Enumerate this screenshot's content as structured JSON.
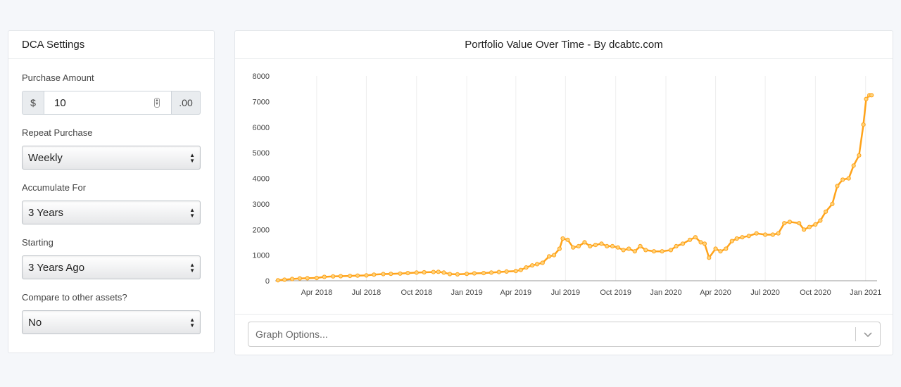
{
  "settings": {
    "title": "DCA Settings",
    "purchase_amount": {
      "label": "Purchase Amount",
      "prefix": "$",
      "value": "10",
      "suffix": ".00"
    },
    "repeat_purchase": {
      "label": "Repeat Purchase",
      "value": "Weekly"
    },
    "accumulate_for": {
      "label": "Accumulate For",
      "value": "3 Years"
    },
    "starting": {
      "label": "Starting",
      "value": "3 Years Ago"
    },
    "compare": {
      "label": "Compare to other assets?",
      "value": "No"
    }
  },
  "chart": {
    "title": "Portfolio Value Over Time - By dcabtc.com",
    "graph_options_placeholder": "Graph Options..."
  },
  "colors": {
    "line": "#ffa31a",
    "grid": "#eeeeee",
    "axis": "#999999"
  },
  "chart_data": {
    "type": "line",
    "title": "Portfolio Value Over Time - By dcabtc.com",
    "xlabel": "",
    "ylabel": "",
    "ylim": [
      0,
      8000
    ],
    "y_ticks": [
      0,
      1000,
      2000,
      3000,
      4000,
      5000,
      6000,
      7000,
      8000
    ],
    "x_ticks": [
      "Apr 2018",
      "Jul 2018",
      "Oct 2018",
      "Jan 2019",
      "Apr 2019",
      "Jul 2019",
      "Oct 2019",
      "Jan 2020",
      "Apr 2020",
      "Jul 2020",
      "Oct 2020",
      "Jan 2021"
    ],
    "grid": true,
    "legend": "none",
    "series": [
      {
        "x": [
          "2018-01-20",
          "2018-02-01",
          "2018-02-15",
          "2018-03-01",
          "2018-03-15",
          "2018-04-01",
          "2018-04-15",
          "2018-05-01",
          "2018-05-15",
          "2018-06-01",
          "2018-06-15",
          "2018-07-01",
          "2018-07-15",
          "2018-08-01",
          "2018-08-15",
          "2018-09-01",
          "2018-09-15",
          "2018-10-01",
          "2018-10-15",
          "2018-11-01",
          "2018-11-10",
          "2018-11-20",
          "2018-12-01",
          "2018-12-15",
          "2019-01-01",
          "2019-01-15",
          "2019-02-01",
          "2019-02-15",
          "2019-03-01",
          "2019-03-15",
          "2019-04-01",
          "2019-04-10",
          "2019-04-20",
          "2019-05-01",
          "2019-05-10",
          "2019-05-20",
          "2019-06-01",
          "2019-06-10",
          "2019-06-20",
          "2019-06-26",
          "2019-07-05",
          "2019-07-15",
          "2019-07-25",
          "2019-08-05",
          "2019-08-15",
          "2019-08-25",
          "2019-09-05",
          "2019-09-15",
          "2019-09-25",
          "2019-10-05",
          "2019-10-15",
          "2019-10-25",
          "2019-11-05",
          "2019-11-15",
          "2019-11-25",
          "2019-12-10",
          "2019-12-25",
          "2020-01-10",
          "2020-01-20",
          "2020-02-01",
          "2020-02-14",
          "2020-02-24",
          "2020-03-05",
          "2020-03-12",
          "2020-03-20",
          "2020-04-01",
          "2020-04-10",
          "2020-04-20",
          "2020-05-01",
          "2020-05-10",
          "2020-05-20",
          "2020-06-01",
          "2020-06-15",
          "2020-07-01",
          "2020-07-15",
          "2020-07-25",
          "2020-08-05",
          "2020-08-15",
          "2020-09-01",
          "2020-09-10",
          "2020-09-20",
          "2020-10-01",
          "2020-10-10",
          "2020-10-20",
          "2020-11-01",
          "2020-11-10",
          "2020-11-20",
          "2020-12-01",
          "2020-12-10",
          "2020-12-20",
          "2020-12-28",
          "2021-01-02",
          "2021-01-08",
          "2021-01-12"
        ],
        "values": [
          20,
          40,
          70,
          90,
          100,
          110,
          150,
          170,
          180,
          190,
          200,
          210,
          240,
          260,
          270,
          280,
          300,
          320,
          330,
          340,
          350,
          320,
          260,
          250,
          270,
          290,
          300,
          320,
          340,
          360,
          380,
          420,
          520,
          600,
          650,
          700,
          950,
          1000,
          1250,
          1650,
          1600,
          1300,
          1350,
          1500,
          1350,
          1400,
          1450,
          1350,
          1350,
          1300,
          1200,
          1250,
          1150,
          1350,
          1200,
          1150,
          1150,
          1200,
          1350,
          1450,
          1600,
          1700,
          1500,
          1450,
          900,
          1250,
          1150,
          1250,
          1550,
          1650,
          1700,
          1750,
          1850,
          1800,
          1800,
          1850,
          2250,
          2300,
          2250,
          2000,
          2100,
          2200,
          2350,
          2700,
          3000,
          3700,
          3950,
          4000,
          4500,
          4900,
          6100,
          7100,
          7250,
          7250
        ]
      }
    ]
  }
}
